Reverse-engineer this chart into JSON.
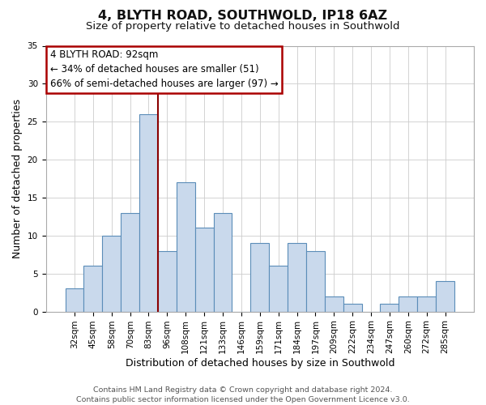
{
  "title": "4, BLYTH ROAD, SOUTHWOLD, IP18 6AZ",
  "subtitle": "Size of property relative to detached houses in Southwold",
  "xlabel": "Distribution of detached houses by size in Southwold",
  "ylabel": "Number of detached properties",
  "footer_line1": "Contains HM Land Registry data © Crown copyright and database right 2024.",
  "footer_line2": "Contains public sector information licensed under the Open Government Licence v3.0.",
  "annotation_line1": "4 BLYTH ROAD: 92sqm",
  "annotation_line2": "← 34% of detached houses are smaller (51)",
  "annotation_line3": "66% of semi-detached houses are larger (97) →",
  "bar_labels": [
    "32sqm",
    "45sqm",
    "58sqm",
    "70sqm",
    "83sqm",
    "96sqm",
    "108sqm",
    "121sqm",
    "133sqm",
    "146sqm",
    "159sqm",
    "171sqm",
    "184sqm",
    "197sqm",
    "209sqm",
    "222sqm",
    "234sqm",
    "247sqm",
    "260sqm",
    "272sqm",
    "285sqm"
  ],
  "bar_values": [
    3,
    6,
    10,
    13,
    26,
    8,
    17,
    11,
    13,
    0,
    9,
    6,
    9,
    8,
    2,
    1,
    0,
    1,
    2,
    2,
    4
  ],
  "bar_width": 1.0,
  "bar_color": "#c9d9ec",
  "bar_edge_color": "#5b8db8",
  "marker_bar_index": 5,
  "marker_color": "#8b0000",
  "ylim": [
    0,
    35
  ],
  "yticks": [
    0,
    5,
    10,
    15,
    20,
    25,
    30,
    35
  ],
  "background_color": "#ffffff",
  "grid_color": "#cccccc",
  "annotation_box_color": "#aa0000",
  "title_fontsize": 11.5,
  "subtitle_fontsize": 9.5,
  "axis_label_fontsize": 9,
  "tick_fontsize": 7.5,
  "annotation_fontsize": 8.5,
  "footer_fontsize": 6.8
}
